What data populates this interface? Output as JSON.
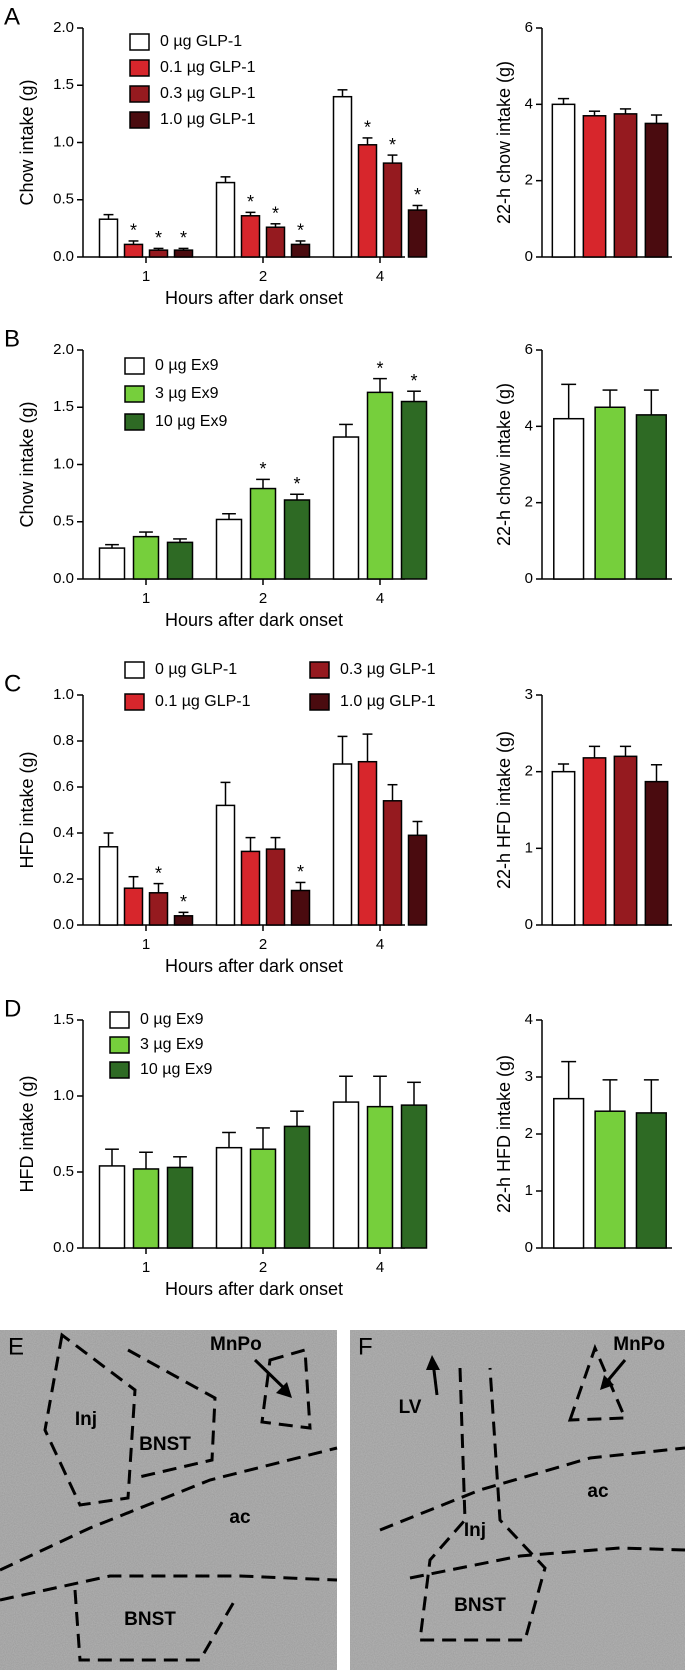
{
  "chart_data": [
    {
      "panel": "A",
      "type": "grouped-bar",
      "xlabel": "Hours after dark onset",
      "ylabel": "Chow intake (g)",
      "categories": [
        "1",
        "2",
        "4"
      ],
      "ylim": [
        0,
        2.0
      ],
      "yticks": [
        {
          "value": 0,
          "label": "0.0"
        },
        {
          "value": 0.5,
          "label": "0.5"
        },
        {
          "value": 1.0,
          "label": "1.0"
        },
        {
          "value": 1.5,
          "label": "1.5"
        },
        {
          "value": 2.0,
          "label": "2.0"
        }
      ],
      "legend": "upper left",
      "series": [
        {
          "name": "0 µg GLP-1",
          "color": "#ffffff",
          "values": [
            0.33,
            0.65,
            1.4
          ],
          "errors": [
            0.04,
            0.05,
            0.06
          ],
          "annotations": [
            null,
            null,
            null
          ]
        },
        {
          "name": "0.1 µg GLP-1",
          "color": "#d7262c",
          "values": [
            0.11,
            0.36,
            0.98
          ],
          "errors": [
            0.03,
            0.03,
            0.06
          ],
          "annotations": [
            "*",
            "*",
            "*"
          ]
        },
        {
          "name": "0.3 µg GLP-1",
          "color": "#951a1f",
          "values": [
            0.06,
            0.26,
            0.82
          ],
          "errors": [
            0.015,
            0.03,
            0.07
          ],
          "annotations": [
            "*",
            "*",
            "*"
          ]
        },
        {
          "name": "1.0 µg GLP-1",
          "color": "#4a0b0f",
          "values": [
            0.06,
            0.11,
            0.41
          ],
          "errors": [
            0.015,
            0.03,
            0.04
          ],
          "annotations": [
            "*",
            "*",
            "*"
          ]
        }
      ]
    },
    {
      "type": "bar",
      "ylabel": "22-h chow intake (g)",
      "ylim": [
        0,
        6
      ],
      "yticks": [
        0,
        2,
        4,
        6
      ],
      "values": [
        4.0,
        3.7,
        3.75,
        3.5
      ],
      "errors": [
        0.15,
        0.12,
        0.13,
        0.22
      ],
      "colors": [
        "#ffffff",
        "#d7262c",
        "#951a1f",
        "#4a0b0f"
      ]
    },
    {
      "panel": "B",
      "type": "grouped-bar",
      "xlabel": "Hours after dark onset",
      "ylabel": "Chow intake (g)",
      "categories": [
        "1",
        "2",
        "4"
      ],
      "ylim": [
        0,
        2.0
      ],
      "yticks": [
        {
          "value": 0,
          "label": "0.0"
        },
        {
          "value": 0.5,
          "label": "0.5"
        },
        {
          "value": 1.0,
          "label": "1.0"
        },
        {
          "value": 1.5,
          "label": "1.5"
        },
        {
          "value": 2.0,
          "label": "2.0"
        }
      ],
      "legend": "upper left",
      "series": [
        {
          "name": "0 µg Ex9",
          "color": "#ffffff",
          "values": [
            0.27,
            0.52,
            1.24
          ],
          "errors": [
            0.03,
            0.05,
            0.11
          ],
          "annotations": [
            null,
            null,
            null
          ]
        },
        {
          "name": "3 µg Ex9",
          "color": "#76cf3c",
          "values": [
            0.37,
            0.79,
            1.63
          ],
          "errors": [
            0.04,
            0.08,
            0.12
          ],
          "annotations": [
            null,
            "*",
            "*"
          ]
        },
        {
          "name": "10 µg Ex9",
          "color": "#2e6a24",
          "values": [
            0.32,
            0.69,
            1.55
          ],
          "errors": [
            0.03,
            0.05,
            0.09
          ],
          "annotations": [
            null,
            "*",
            "*"
          ]
        }
      ]
    },
    {
      "type": "bar",
      "ylabel": "22-h chow intake (g)",
      "ylim": [
        0,
        6
      ],
      "yticks": [
        0,
        2,
        4,
        6
      ],
      "values": [
        4.2,
        4.5,
        4.3
      ],
      "errors": [
        0.9,
        0.45,
        0.65
      ],
      "colors": [
        "#ffffff",
        "#76cf3c",
        "#2e6a24"
      ]
    },
    {
      "panel": "C",
      "type": "grouped-bar",
      "xlabel": "Hours after dark onset",
      "ylabel": "HFD intake (g)",
      "categories": [
        "1",
        "2",
        "4"
      ],
      "ylim": [
        0,
        1.0
      ],
      "yticks": [
        {
          "value": 0,
          "label": "0.0"
        },
        {
          "value": 0.2,
          "label": "0.2"
        },
        {
          "value": 0.4,
          "label": "0.4"
        },
        {
          "value": 0.6,
          "label": "0.6"
        },
        {
          "value": 0.8,
          "label": "0.8"
        },
        {
          "value": 1.0,
          "label": "1.0"
        }
      ],
      "legend": "upper two columns",
      "series": [
        {
          "name": "0 µg GLP-1",
          "color": "#ffffff",
          "values": [
            0.34,
            0.52,
            0.7
          ],
          "errors": [
            0.06,
            0.1,
            0.12
          ],
          "annotations": [
            null,
            null,
            null
          ]
        },
        {
          "name": "0.1 µg GLP-1",
          "color": "#d7262c",
          "values": [
            0.16,
            0.32,
            0.71
          ],
          "errors": [
            0.05,
            0.06,
            0.12
          ],
          "annotations": [
            null,
            null,
            null
          ]
        },
        {
          "name": "0.3 µg GLP-1",
          "color": "#951a1f",
          "values": [
            0.14,
            0.33,
            0.54
          ],
          "errors": [
            0.04,
            0.05,
            0.07
          ],
          "annotations": [
            "*",
            null,
            null
          ]
        },
        {
          "name": "1.0 µg GLP-1",
          "color": "#4a0b0f",
          "values": [
            0.04,
            0.15,
            0.39
          ],
          "errors": [
            0.015,
            0.035,
            0.06
          ],
          "annotations": [
            "*",
            "*",
            null
          ]
        }
      ]
    },
    {
      "type": "bar",
      "ylabel": "22-h HFD intake (g)",
      "ylim": [
        0,
        3
      ],
      "yticks": [
        0,
        1,
        2,
        3
      ],
      "values": [
        2.0,
        2.18,
        2.2,
        1.87
      ],
      "errors": [
        0.1,
        0.15,
        0.13,
        0.22
      ],
      "colors": [
        "#ffffff",
        "#d7262c",
        "#951a1f",
        "#4a0b0f"
      ]
    },
    {
      "panel": "D",
      "type": "grouped-bar",
      "xlabel": "Hours after dark onset",
      "ylabel": "HFD intake (g)",
      "categories": [
        "1",
        "2",
        "4"
      ],
      "ylim": [
        0,
        1.5
      ],
      "yticks": [
        {
          "value": 0,
          "label": "0.0"
        },
        {
          "value": 0.5,
          "label": "0.5"
        },
        {
          "value": 1.0,
          "label": "1.0"
        },
        {
          "value": 1.5,
          "label": "1.5"
        }
      ],
      "legend": "upper left",
      "series": [
        {
          "name": "0 µg Ex9",
          "color": "#ffffff",
          "values": [
            0.54,
            0.66,
            0.96
          ],
          "errors": [
            0.11,
            0.1,
            0.17
          ],
          "annotations": [
            null,
            null,
            null
          ]
        },
        {
          "name": "3 µg Ex9",
          "color": "#76cf3c",
          "values": [
            0.52,
            0.65,
            0.93
          ],
          "errors": [
            0.11,
            0.14,
            0.2
          ],
          "annotations": [
            null,
            null,
            null
          ]
        },
        {
          "name": "10 µg Ex9",
          "color": "#2e6a24",
          "values": [
            0.53,
            0.8,
            0.94
          ],
          "errors": [
            0.07,
            0.1,
            0.15
          ],
          "annotations": [
            null,
            null,
            null
          ]
        }
      ]
    },
    {
      "type": "bar",
      "ylabel": "22-h HFD intake (g)",
      "ylim": [
        0,
        4
      ],
      "yticks": [
        0,
        1,
        2,
        3,
        4
      ],
      "values": [
        2.62,
        2.4,
        2.37
      ],
      "errors": [
        0.65,
        0.55,
        0.58
      ],
      "colors": [
        "#ffffff",
        "#76cf3c",
        "#2e6a24"
      ]
    }
  ],
  "micrographs": [
    {
      "panel": "E",
      "labels": [
        "MnPo",
        "Inj",
        "BNST",
        "ac",
        "BNST"
      ]
    },
    {
      "panel": "F",
      "labels": [
        "LV",
        "MnPo",
        "Inj",
        "ac",
        "BNST"
      ]
    }
  ]
}
